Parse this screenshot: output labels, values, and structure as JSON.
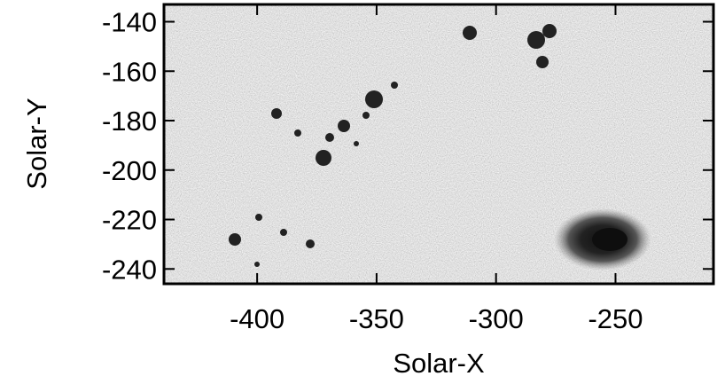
{
  "chart_data": {
    "type": "image",
    "xlabel": "Solar-X",
    "ylabel": "Solar-Y",
    "xlim": [
      -439,
      -209
    ],
    "xticks": [
      -400,
      -350,
      -300,
      -250
    ],
    "ylim": [
      -246,
      -133
    ],
    "yticks": [
      -140,
      -160,
      -180,
      -200,
      -220,
      -240
    ]
  }
}
